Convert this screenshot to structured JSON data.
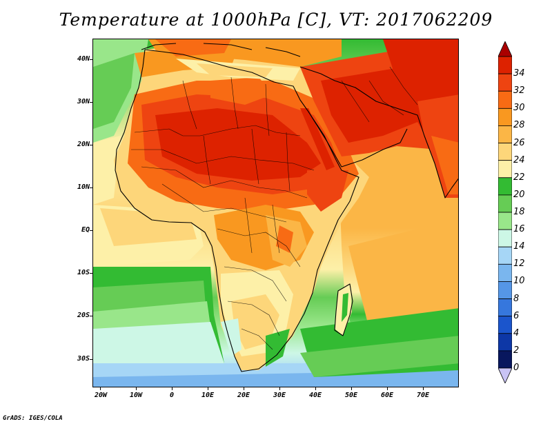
{
  "title": "Temperature at 1000hPa [C], VT: 2017062209",
  "footer": "GrADS: IGES/COLA",
  "map": {
    "lon_labels": [
      "20W",
      "10W",
      "0",
      "10E",
      "20E",
      "30E",
      "40E",
      "50E",
      "60E",
      "70E"
    ],
    "lat_labels": [
      "40N",
      "30N",
      "20N",
      "10N",
      "EQ",
      "10S",
      "20S",
      "30S"
    ]
  },
  "colorbar": {
    "labels": [
      "34",
      "32",
      "30",
      "28",
      "26",
      "24",
      "22",
      "20",
      "18",
      "16",
      "14",
      "12",
      "10",
      "8",
      "6",
      "4",
      "2",
      "0"
    ],
    "colors": [
      "#dd2200",
      "#ee4411",
      "#f86b14",
      "#f99820",
      "#fbb646",
      "#fdd67a",
      "#fdf0a8",
      "#33bb33",
      "#66cc55",
      "#99e68a",
      "#cdf7e6",
      "#a6d6f6",
      "#7ab6ee",
      "#5596e6",
      "#3677dd",
      "#1b55cc",
      "#0d37a6",
      "#08175e"
    ],
    "top_arrow_color": "#aa0000",
    "bottom_arrow_color": "#c9c4f5"
  }
}
